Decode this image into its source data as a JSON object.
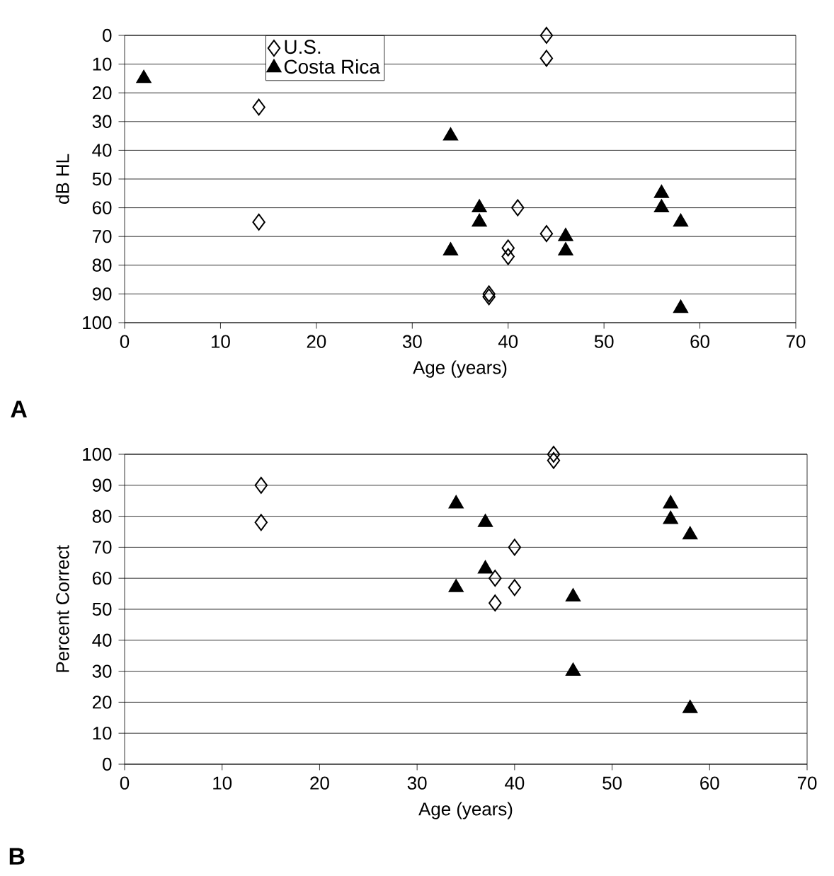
{
  "chart_data": [
    {
      "type": "scatter",
      "xlabel": "Age (years)",
      "ylabel": "dB HL",
      "xlim": [
        0,
        70
      ],
      "ylim": [
        100,
        0
      ],
      "xticks": [
        0,
        10,
        20,
        30,
        40,
        50,
        60,
        70
      ],
      "yticks": [
        0,
        10,
        20,
        30,
        40,
        50,
        60,
        70,
        80,
        90,
        100
      ],
      "grid": "y",
      "legend": "top left",
      "annotations": [
        "A"
      ],
      "series": [
        {
          "name": "U.S.",
          "color": "#000000",
          "marker": "diamond",
          "x": [
            44,
            44,
            14,
            14,
            41,
            44,
            40,
            40,
            38,
            38
          ],
          "values": [
            0,
            8,
            25,
            65,
            60,
            69,
            74,
            77,
            90,
            91
          ]
        },
        {
          "name": "Costa Rica",
          "color": "#000000",
          "marker": "triangle",
          "x": [
            2,
            34,
            37,
            37,
            34,
            46,
            46,
            56,
            56,
            58,
            58
          ],
          "values": [
            15,
            35,
            60,
            65,
            75,
            70,
            75,
            55,
            60,
            65,
            95
          ]
        }
      ]
    },
    {
      "type": "scatter",
      "xlabel": "Age (years)",
      "ylabel": "Percent Correct",
      "xlim": [
        0,
        70
      ],
      "ylim": [
        0,
        100
      ],
      "xticks": [
        0,
        10,
        20,
        30,
        40,
        50,
        60,
        70
      ],
      "yticks": [
        0,
        10,
        20,
        30,
        40,
        50,
        60,
        70,
        80,
        90,
        100
      ],
      "grid": "y",
      "annotations": [
        "B"
      ],
      "series": [
        {
          "color": "#000000",
          "marker": "diamond",
          "x": [
            14,
            14,
            44,
            44,
            40,
            38,
            40,
            38
          ],
          "values": [
            90,
            78,
            100,
            98,
            70,
            60,
            57,
            52
          ]
        },
        {
          "color": "#000000",
          "marker": "triangle",
          "x": [
            34,
            37,
            37,
            34,
            46,
            46,
            56,
            56,
            58,
            58
          ],
          "values": [
            84,
            78,
            63,
            57,
            54,
            30,
            84,
            79,
            74,
            18
          ]
        }
      ]
    }
  ]
}
